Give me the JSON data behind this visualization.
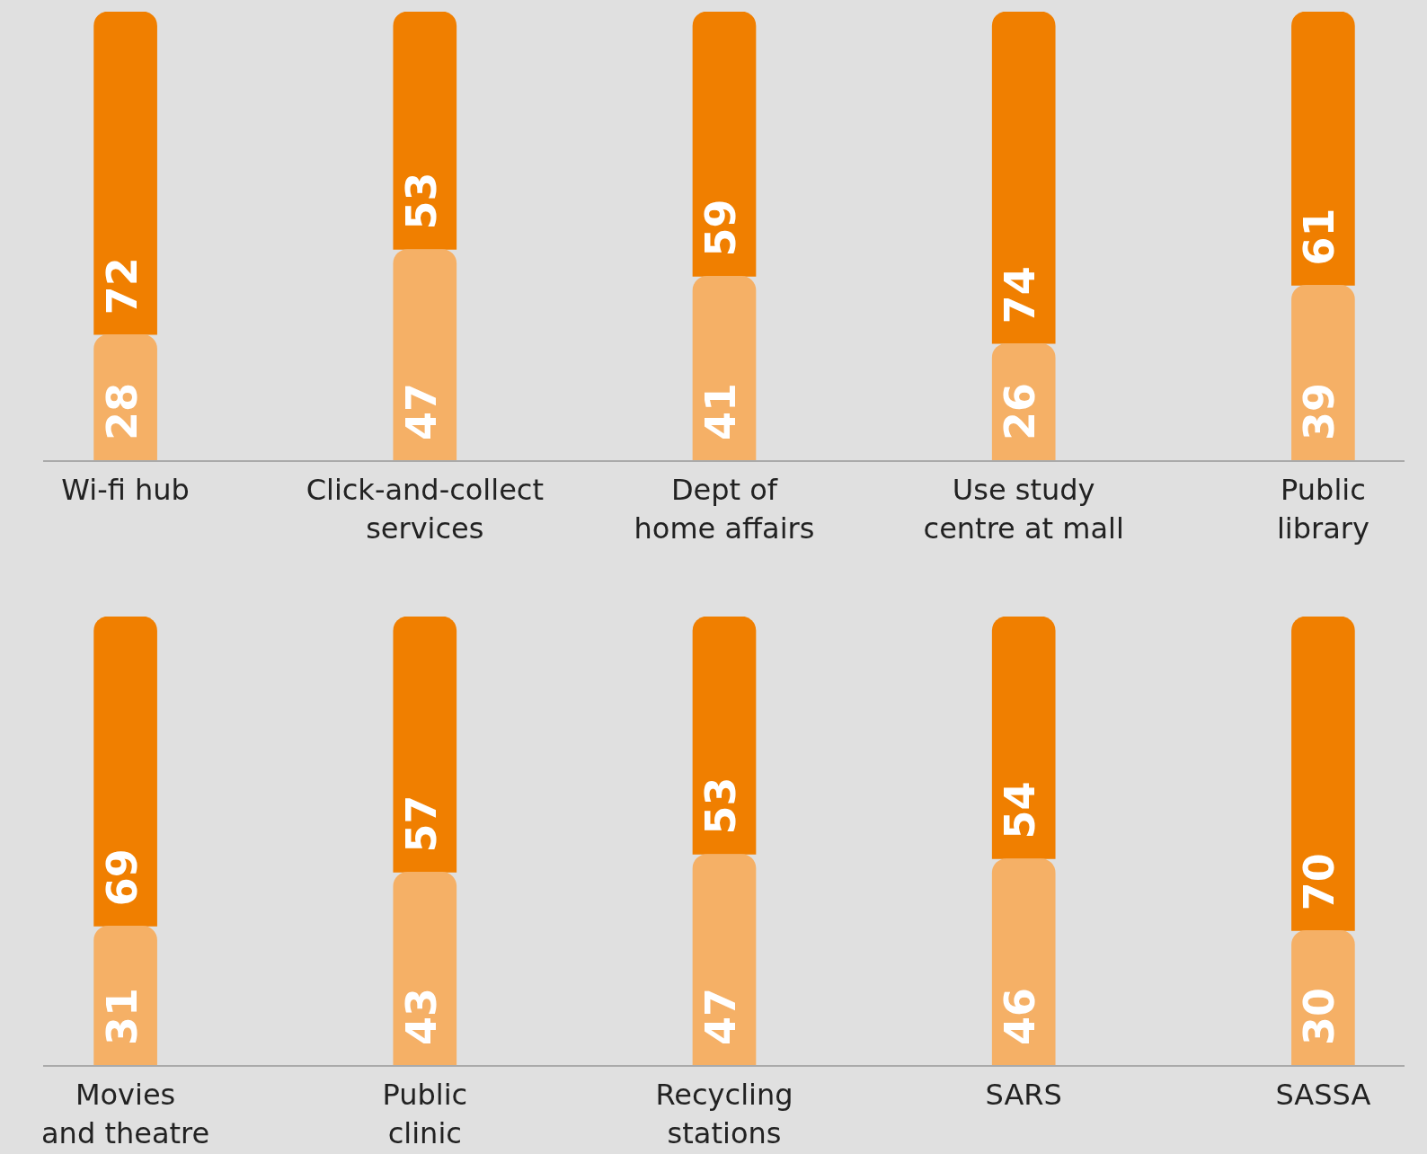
{
  "chart_data": [
    {
      "type": "bar",
      "stacked": true,
      "data_labels": true,
      "tick_labels": "x",
      "ylim": [
        0,
        100
      ],
      "categories": [
        "Wi-fi hub",
        "Click-and-collect\nservices",
        "Dept of\nhome affairs",
        "Use study\ncentre at mall",
        "Public\nlibrary"
      ],
      "series": [
        {
          "color": "#f5b066",
          "values": [
            28,
            47,
            41,
            26,
            39
          ]
        },
        {
          "color": "#f07f00",
          "values": [
            72,
            53,
            59,
            74,
            61
          ]
        }
      ]
    },
    {
      "type": "bar",
      "stacked": true,
      "data_labels": true,
      "tick_labels": "x",
      "ylim": [
        0,
        100
      ],
      "categories": [
        "Movies\nand theatre",
        "Public\nclinic",
        "Recycling\nstations",
        "SARS",
        "SASSA"
      ],
      "series": [
        {
          "color": "#f5b066",
          "values": [
            31,
            43,
            47,
            46,
            30
          ]
        },
        {
          "color": "#f07f00",
          "values": [
            69,
            57,
            53,
            54,
            70
          ]
        }
      ]
    }
  ]
}
